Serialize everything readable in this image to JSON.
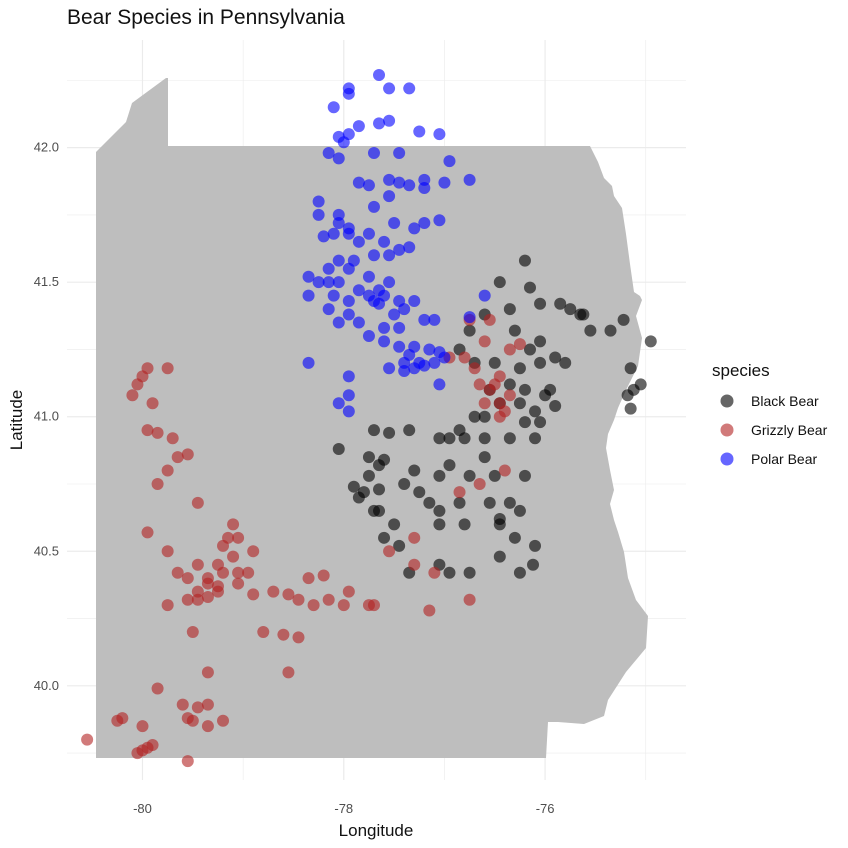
{
  "chart_data": {
    "type": "scatter",
    "title": "Bear Species in Pennsylvania",
    "xlabel": "Longitude",
    "ylabel": "Latitude",
    "xlim": [
      -80.75,
      -74.6
    ],
    "ylim": [
      39.65,
      42.4
    ],
    "x_ticks": [
      -80,
      -78,
      -76
    ],
    "x_tick_labels": [
      "-80",
      "-78",
      "-76"
    ],
    "y_ticks": [
      40.0,
      40.5,
      41.0,
      41.5,
      42.0
    ],
    "y_tick_labels": [
      "40.0",
      "40.5",
      "41.0",
      "41.5",
      "42.0"
    ],
    "grid": true,
    "legend": {
      "title": "species",
      "position": "right"
    },
    "background_shape": "Pennsylvania state outline (grey fill)",
    "colors": {
      "Black Bear": "#000000",
      "Grizzly Bear": "#b22222",
      "Polar Bear": "#0000ff",
      "map_fill": "#bebebe",
      "grid": "#ebebeb"
    },
    "series": [
      {
        "name": "Black Bear",
        "color": "#000000",
        "points": [
          [
            -76.2,
            41.58
          ],
          [
            -76.45,
            41.5
          ],
          [
            -76.15,
            41.48
          ],
          [
            -76.05,
            41.42
          ],
          [
            -76.35,
            41.4
          ],
          [
            -75.85,
            41.42
          ],
          [
            -75.75,
            41.4
          ],
          [
            -75.65,
            41.38
          ],
          [
            -75.62,
            41.38
          ],
          [
            -75.55,
            41.32
          ],
          [
            -75.35,
            41.32
          ],
          [
            -75.22,
            41.36
          ],
          [
            -74.95,
            41.28
          ],
          [
            -76.6,
            41.38
          ],
          [
            -76.75,
            41.32
          ],
          [
            -76.3,
            41.32
          ],
          [
            -76.05,
            41.28
          ],
          [
            -76.15,
            41.25
          ],
          [
            -75.9,
            41.22
          ],
          [
            -76.85,
            41.25
          ],
          [
            -76.7,
            41.2
          ],
          [
            -76.5,
            41.2
          ],
          [
            -76.25,
            41.18
          ],
          [
            -76.05,
            41.2
          ],
          [
            -75.8,
            41.2
          ],
          [
            -75.15,
            41.18
          ],
          [
            -75.05,
            41.12
          ],
          [
            -75.12,
            41.1
          ],
          [
            -75.18,
            41.08
          ],
          [
            -75.15,
            41.03
          ],
          [
            -76.55,
            41.1
          ],
          [
            -76.35,
            41.12
          ],
          [
            -76.2,
            41.1
          ],
          [
            -76.0,
            41.08
          ],
          [
            -75.95,
            41.1
          ],
          [
            -76.45,
            41.05
          ],
          [
            -76.25,
            41.05
          ],
          [
            -76.1,
            41.02
          ],
          [
            -75.9,
            41.04
          ],
          [
            -76.7,
            41.0
          ],
          [
            -76.6,
            41.0
          ],
          [
            -76.2,
            40.98
          ],
          [
            -76.05,
            40.98
          ],
          [
            -76.85,
            40.95
          ],
          [
            -76.95,
            40.92
          ],
          [
            -77.35,
            40.95
          ],
          [
            -77.55,
            40.94
          ],
          [
            -77.7,
            40.95
          ],
          [
            -77.05,
            40.92
          ],
          [
            -76.8,
            40.92
          ],
          [
            -76.6,
            40.92
          ],
          [
            -76.35,
            40.92
          ],
          [
            -76.1,
            40.92
          ],
          [
            -78.05,
            40.88
          ],
          [
            -77.6,
            40.84
          ],
          [
            -77.75,
            40.85
          ],
          [
            -76.6,
            40.85
          ],
          [
            -77.65,
            40.82
          ],
          [
            -77.3,
            40.8
          ],
          [
            -76.95,
            40.82
          ],
          [
            -76.75,
            40.78
          ],
          [
            -76.5,
            40.78
          ],
          [
            -77.75,
            40.78
          ],
          [
            -77.4,
            40.75
          ],
          [
            -77.9,
            40.74
          ],
          [
            -77.05,
            40.78
          ],
          [
            -76.2,
            40.78
          ],
          [
            -77.8,
            40.72
          ],
          [
            -77.65,
            40.73
          ],
          [
            -77.25,
            40.72
          ],
          [
            -76.85,
            40.68
          ],
          [
            -76.55,
            40.68
          ],
          [
            -76.35,
            40.68
          ],
          [
            -76.25,
            40.65
          ],
          [
            -76.45,
            40.62
          ],
          [
            -77.15,
            40.68
          ],
          [
            -77.05,
            40.65
          ],
          [
            -77.85,
            40.7
          ],
          [
            -77.65,
            40.65
          ],
          [
            -77.5,
            40.6
          ],
          [
            -77.05,
            40.6
          ],
          [
            -76.8,
            40.6
          ],
          [
            -76.45,
            40.6
          ],
          [
            -77.6,
            40.55
          ],
          [
            -77.45,
            40.52
          ],
          [
            -76.3,
            40.55
          ],
          [
            -76.1,
            40.52
          ],
          [
            -77.05,
            40.45
          ],
          [
            -77.35,
            40.42
          ],
          [
            -76.95,
            40.42
          ],
          [
            -76.75,
            40.42
          ],
          [
            -76.25,
            40.42
          ],
          [
            -76.12,
            40.45
          ],
          [
            -76.45,
            40.48
          ],
          [
            -77.7,
            40.65
          ]
        ]
      },
      {
        "name": "Grizzly Bear",
        "color": "#b22222",
        "points": [
          [
            -79.95,
            41.18
          ],
          [
            -80.0,
            41.15
          ],
          [
            -79.75,
            41.18
          ],
          [
            -80.05,
            41.12
          ],
          [
            -80.1,
            41.08
          ],
          [
            -79.9,
            41.05
          ],
          [
            -79.95,
            40.95
          ],
          [
            -79.85,
            40.94
          ],
          [
            -79.7,
            40.92
          ],
          [
            -79.55,
            40.86
          ],
          [
            -79.65,
            40.85
          ],
          [
            -79.75,
            40.8
          ],
          [
            -79.85,
            40.75
          ],
          [
            -79.45,
            40.68
          ],
          [
            -79.95,
            40.57
          ],
          [
            -79.1,
            40.6
          ],
          [
            -79.15,
            40.55
          ],
          [
            -79.05,
            40.55
          ],
          [
            -79.2,
            40.52
          ],
          [
            -78.9,
            40.5
          ],
          [
            -79.1,
            40.48
          ],
          [
            -79.25,
            40.45
          ],
          [
            -79.45,
            40.45
          ],
          [
            -79.55,
            40.4
          ],
          [
            -79.35,
            40.4
          ],
          [
            -79.2,
            40.42
          ],
          [
            -79.05,
            40.42
          ],
          [
            -78.95,
            40.42
          ],
          [
            -79.75,
            40.5
          ],
          [
            -79.65,
            40.42
          ],
          [
            -79.45,
            40.35
          ],
          [
            -79.35,
            40.38
          ],
          [
            -79.25,
            40.37
          ],
          [
            -79.05,
            40.38
          ],
          [
            -79.25,
            40.35
          ],
          [
            -79.55,
            40.32
          ],
          [
            -79.35,
            40.33
          ],
          [
            -79.45,
            40.32
          ],
          [
            -78.7,
            40.35
          ],
          [
            -78.55,
            40.34
          ],
          [
            -78.45,
            40.32
          ],
          [
            -78.15,
            40.32
          ],
          [
            -77.95,
            40.35
          ],
          [
            -78.0,
            40.3
          ],
          [
            -78.3,
            40.3
          ],
          [
            -78.9,
            40.34
          ],
          [
            -77.75,
            40.3
          ],
          [
            -79.75,
            40.3
          ],
          [
            -79.5,
            40.2
          ],
          [
            -78.8,
            40.2
          ],
          [
            -78.6,
            40.19
          ],
          [
            -78.45,
            40.18
          ],
          [
            -78.2,
            40.41
          ],
          [
            -78.35,
            40.4
          ],
          [
            -79.35,
            40.05
          ],
          [
            -78.55,
            40.05
          ],
          [
            -79.85,
            39.99
          ],
          [
            -79.6,
            39.93
          ],
          [
            -79.35,
            39.93
          ],
          [
            -79.45,
            39.92
          ],
          [
            -79.55,
            39.88
          ],
          [
            -79.35,
            39.85
          ],
          [
            -79.2,
            39.87
          ],
          [
            -79.5,
            39.87
          ],
          [
            -80.2,
            39.88
          ],
          [
            -80.25,
            39.87
          ],
          [
            -80.0,
            39.85
          ],
          [
            -80.55,
            39.8
          ],
          [
            -79.9,
            39.78
          ],
          [
            -80.0,
            39.76
          ],
          [
            -79.95,
            39.77
          ],
          [
            -80.05,
            39.75
          ],
          [
            -79.55,
            39.72
          ],
          [
            -77.55,
            40.5
          ],
          [
            -77.3,
            40.55
          ],
          [
            -77.1,
            40.42
          ],
          [
            -77.3,
            40.45
          ],
          [
            -77.15,
            40.28
          ],
          [
            -77.7,
            40.3
          ],
          [
            -76.75,
            40.32
          ],
          [
            -76.65,
            40.75
          ],
          [
            -76.85,
            40.72
          ],
          [
            -76.4,
            40.8
          ],
          [
            -76.6,
            41.05
          ],
          [
            -76.45,
            41.05
          ],
          [
            -76.55,
            41.1
          ],
          [
            -76.35,
            41.08
          ],
          [
            -76.65,
            41.12
          ],
          [
            -76.5,
            41.12
          ],
          [
            -76.45,
            41.15
          ],
          [
            -76.7,
            41.18
          ],
          [
            -76.8,
            41.22
          ],
          [
            -76.6,
            41.28
          ],
          [
            -76.55,
            41.36
          ],
          [
            -76.75,
            41.36
          ],
          [
            -76.35,
            41.25
          ],
          [
            -76.25,
            41.27
          ],
          [
            -76.95,
            41.22
          ],
          [
            -76.45,
            41.0
          ],
          [
            -76.4,
            41.02
          ]
        ]
      },
      {
        "name": "Polar Bear",
        "color": "#0000ff",
        "points": [
          [
            -77.65,
            42.27
          ],
          [
            -77.95,
            42.22
          ],
          [
            -77.95,
            42.2
          ],
          [
            -77.35,
            42.22
          ],
          [
            -77.55,
            42.22
          ],
          [
            -78.1,
            42.15
          ],
          [
            -77.85,
            42.08
          ],
          [
            -77.55,
            42.1
          ],
          [
            -77.65,
            42.09
          ],
          [
            -77.05,
            42.05
          ],
          [
            -77.25,
            42.06
          ],
          [
            -77.95,
            42.05
          ],
          [
            -78.05,
            42.04
          ],
          [
            -78.0,
            42.02
          ],
          [
            -78.15,
            41.98
          ],
          [
            -78.05,
            41.96
          ],
          [
            -77.45,
            41.98
          ],
          [
            -77.7,
            41.98
          ],
          [
            -76.95,
            41.95
          ],
          [
            -76.75,
            41.88
          ],
          [
            -77.55,
            41.88
          ],
          [
            -77.45,
            41.87
          ],
          [
            -77.35,
            41.86
          ],
          [
            -77.75,
            41.86
          ],
          [
            -77.85,
            41.87
          ],
          [
            -77.2,
            41.88
          ],
          [
            -77.0,
            41.87
          ],
          [
            -77.55,
            41.82
          ],
          [
            -77.2,
            41.85
          ],
          [
            -77.7,
            41.78
          ],
          [
            -78.05,
            41.75
          ],
          [
            -78.25,
            41.8
          ],
          [
            -78.05,
            41.72
          ],
          [
            -78.25,
            41.75
          ],
          [
            -77.95,
            41.7
          ],
          [
            -77.5,
            41.72
          ],
          [
            -77.3,
            41.7
          ],
          [
            -77.2,
            41.72
          ],
          [
            -77.05,
            41.73
          ],
          [
            -78.1,
            41.68
          ],
          [
            -78.2,
            41.67
          ],
          [
            -77.95,
            41.68
          ],
          [
            -77.75,
            41.68
          ],
          [
            -77.6,
            41.65
          ],
          [
            -77.35,
            41.63
          ],
          [
            -77.45,
            41.62
          ],
          [
            -77.55,
            41.6
          ],
          [
            -77.85,
            41.65
          ],
          [
            -77.7,
            41.6
          ],
          [
            -78.05,
            41.58
          ],
          [
            -77.9,
            41.58
          ],
          [
            -78.15,
            41.55
          ],
          [
            -77.95,
            41.55
          ],
          [
            -78.35,
            41.52
          ],
          [
            -78.25,
            41.5
          ],
          [
            -78.05,
            41.5
          ],
          [
            -77.75,
            41.52
          ],
          [
            -77.55,
            41.5
          ],
          [
            -77.85,
            41.47
          ],
          [
            -77.65,
            41.47
          ],
          [
            -78.35,
            41.45
          ],
          [
            -78.1,
            41.45
          ],
          [
            -77.75,
            41.45
          ],
          [
            -77.6,
            41.45
          ],
          [
            -77.95,
            41.43
          ],
          [
            -77.7,
            41.43
          ],
          [
            -77.65,
            41.42
          ],
          [
            -77.45,
            41.43
          ],
          [
            -77.3,
            41.43
          ],
          [
            -77.4,
            41.4
          ],
          [
            -78.15,
            41.4
          ],
          [
            -77.95,
            41.38
          ],
          [
            -77.5,
            41.38
          ],
          [
            -78.05,
            41.35
          ],
          [
            -77.85,
            41.35
          ],
          [
            -77.6,
            41.33
          ],
          [
            -77.2,
            41.36
          ],
          [
            -77.1,
            41.36
          ],
          [
            -77.45,
            41.33
          ],
          [
            -77.75,
            41.3
          ],
          [
            -77.6,
            41.28
          ],
          [
            -77.45,
            41.26
          ],
          [
            -77.3,
            41.26
          ],
          [
            -77.15,
            41.25
          ],
          [
            -77.35,
            41.23
          ],
          [
            -77.05,
            41.24
          ],
          [
            -77.0,
            41.22
          ],
          [
            -77.4,
            41.2
          ],
          [
            -77.25,
            41.2
          ],
          [
            -77.1,
            41.2
          ],
          [
            -77.55,
            41.18
          ],
          [
            -77.4,
            41.17
          ],
          [
            -77.3,
            41.18
          ],
          [
            -77.2,
            41.19
          ],
          [
            -78.35,
            41.2
          ],
          [
            -77.95,
            41.15
          ],
          [
            -77.05,
            41.12
          ],
          [
            -77.95,
            41.08
          ],
          [
            -78.05,
            41.05
          ],
          [
            -77.95,
            41.02
          ],
          [
            -76.75,
            41.37
          ],
          [
            -76.6,
            41.45
          ],
          [
            -78.15,
            41.5
          ]
        ]
      }
    ]
  }
}
